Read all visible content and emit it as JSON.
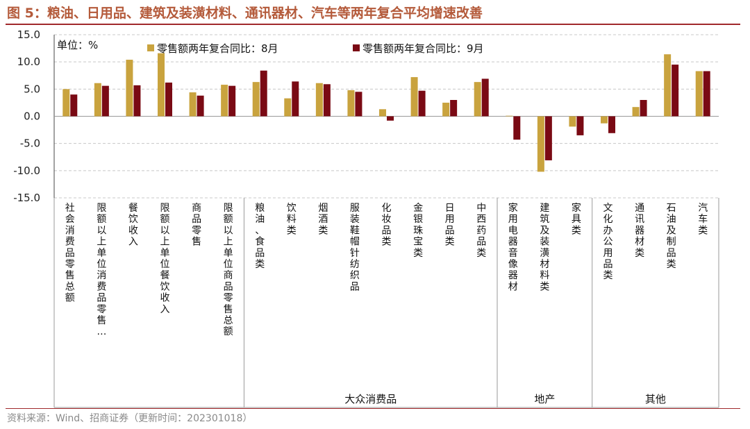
{
  "title": "图 5：粮油、日用品、建筑及装潢材料、通讯器材、汽车等两年复合平均增速改善",
  "source": "资料来源：Wind、招商证券（更新时间：202301018）",
  "colors": {
    "aug": "#c9a33e",
    "sep": "#7a0a14",
    "grid": "#c8c8c8",
    "title": "#b45a3a",
    "rule": "#a0282b"
  },
  "chart_data": {
    "type": "bar",
    "unit_label": "单位：%",
    "ylim": [
      -15,
      15
    ],
    "yticks": [
      "15.0",
      "10.0",
      "5.0",
      "0.0",
      "-5.0",
      "-10.0",
      "-15.0"
    ],
    "grid": true,
    "legend_position": "top",
    "categories": [
      "社会消费品零售总额",
      "限额以上单位消费品零售…",
      "餐饮收入",
      "限额以上单位餐饮收入",
      "商品零售",
      "限额以上单位商品零售总额",
      "粮油、食品类",
      "饮料类",
      "烟酒类",
      "服装鞋帽针纺织品",
      "化妆品类",
      "金银珠宝类",
      "日用品类",
      "中西药品类",
      "家用电器音像器材",
      "建筑及装潢材料类",
      "家具类",
      "文化办公用品类",
      "通讯器材类",
      "石油及制品类",
      "汽车类"
    ],
    "series": [
      {
        "name": "零售额两年复合同比：8月",
        "values": [
          5.0,
          6.1,
          10.4,
          11.6,
          4.4,
          5.8,
          6.3,
          3.3,
          6.1,
          4.8,
          1.3,
          7.2,
          2.5,
          6.3,
          0.1,
          -10.2,
          -1.9,
          -1.3,
          1.7,
          11.4,
          8.3
        ]
      },
      {
        "name": "零售额两年复合同比：9月",
        "values": [
          4.0,
          5.6,
          5.7,
          6.2,
          3.8,
          5.6,
          8.4,
          6.4,
          5.9,
          4.5,
          -0.8,
          4.7,
          3.0,
          6.9,
          -4.3,
          -8.1,
          -3.5,
          -3.1,
          3.0,
          9.5,
          8.3
        ]
      }
    ],
    "groups": [
      {
        "label": "大众消费品",
        "start": 6,
        "end": 13
      },
      {
        "label": "地产",
        "start": 14,
        "end": 16
      },
      {
        "label": "其他",
        "start": 17,
        "end": 20
      }
    ]
  }
}
